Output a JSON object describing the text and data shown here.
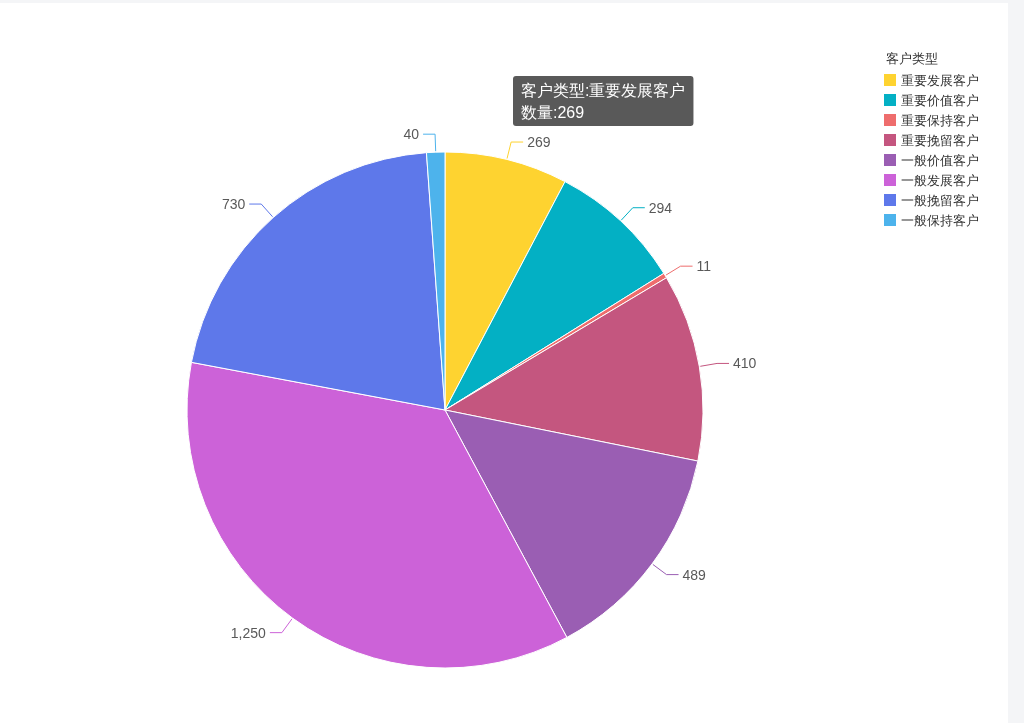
{
  "chart_data": {
    "type": "pie",
    "legend_title": "客户类型",
    "categories": [
      "重要发展客户",
      "重要价值客户",
      "重要保持客户",
      "重要挽留客户",
      "一般价值客户",
      "一般发展客户",
      "一般挽留客户",
      "一般保持客户"
    ],
    "values": [
      269,
      294,
      11,
      410,
      489,
      1250,
      730,
      40
    ],
    "colors": [
      "#fed330",
      "#03b0c4",
      "#ee6d6d",
      "#c4567f",
      "#9a5eb3",
      "#cc62d8",
      "#5e78ea",
      "#4db3ec"
    ],
    "value_labels": [
      "269",
      "294",
      "11",
      "410",
      "489",
      "1,250",
      "730",
      "40"
    ],
    "legend": "top right",
    "annotations": [
      "客户类型:重要发展客户",
      "数量:269"
    ]
  }
}
